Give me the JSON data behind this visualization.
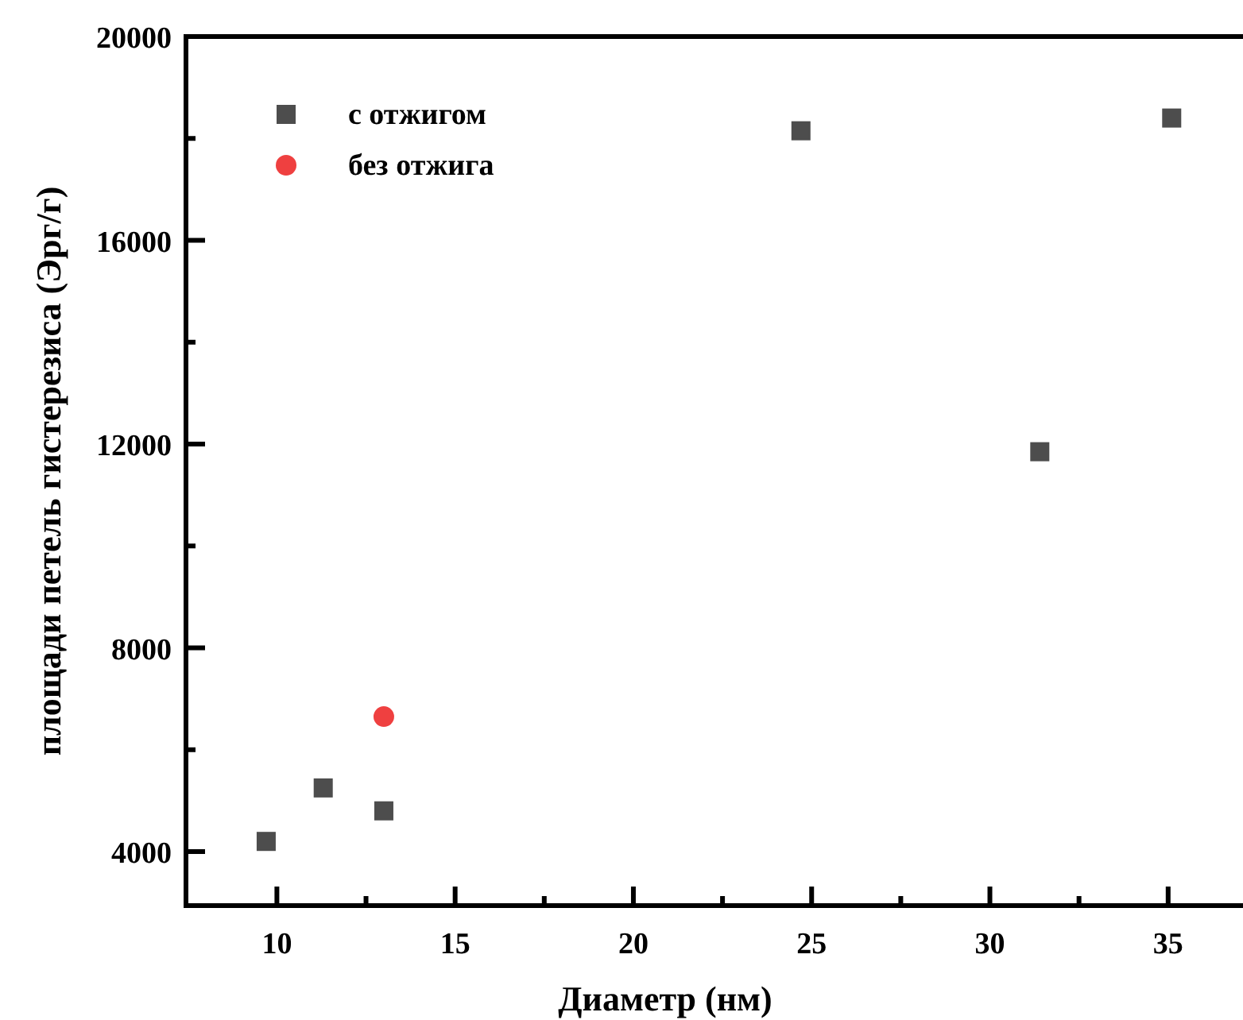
{
  "chart_data": {
    "type": "scatter",
    "xlabel": "Диаметр (нм)",
    "ylabel": "площади петель гистерезиса (Эрг/г)",
    "xlim": [
      7.45,
      37.1
    ],
    "ylim": [
      2940,
      20000
    ],
    "xticks": [
      10,
      {
        "value": 12.5,
        "label": null
      },
      15,
      {
        "value": 17.5,
        "label": null
      },
      20,
      {
        "value": 22.5,
        "label": null
      },
      25,
      {
        "value": 27.5,
        "label": null
      },
      30,
      {
        "value": 32.5,
        "label": null
      },
      35
    ],
    "yticks": [
      4000,
      {
        "value": 6000,
        "label": null
      },
      8000,
      {
        "value": 10000,
        "label": null
      },
      12000,
      {
        "value": 14000,
        "label": null
      },
      16000,
      {
        "value": 18000,
        "label": null
      },
      20000
    ],
    "grid": false,
    "legend": "top left",
    "series": [
      {
        "name": "с отжигом",
        "color": "#4d4d4d",
        "marker": "square",
        "x": [
          9.7,
          11.3,
          13.0,
          24.7,
          31.4,
          35.1
        ],
        "values": [
          4200,
          5250,
          4800,
          18150,
          11850,
          18400
        ]
      },
      {
        "name": "без отжига",
        "color": "#ef4040",
        "marker": "circle",
        "x": [
          13.0
        ],
        "values": [
          6650
        ]
      }
    ]
  }
}
